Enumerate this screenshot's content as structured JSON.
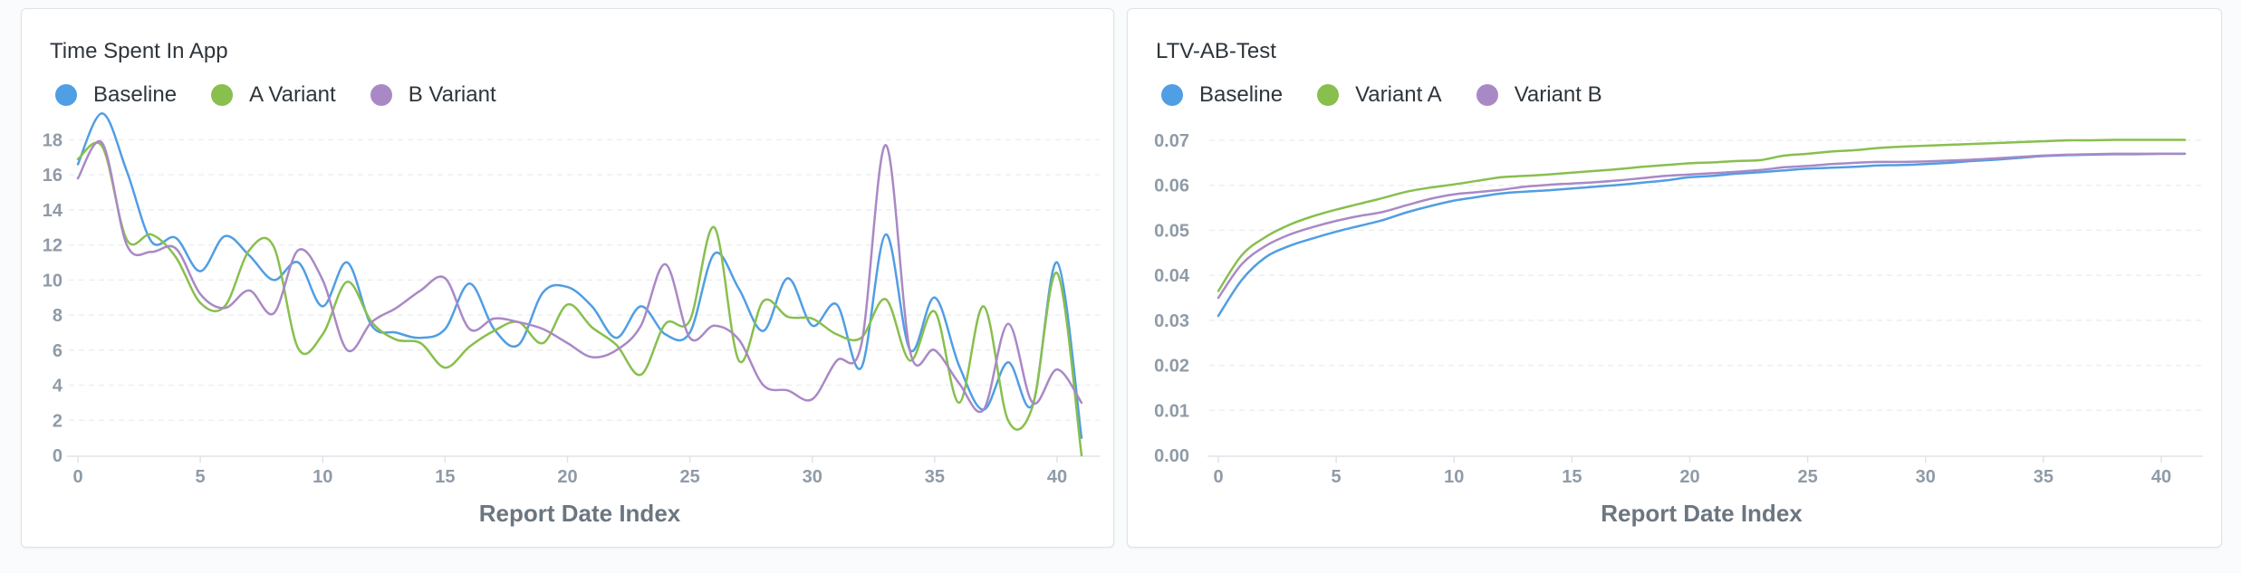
{
  "charts": [
    {
      "title": "Time Spent In App",
      "legend": [
        {
          "name": "Baseline",
          "color": "#509ee3"
        },
        {
          "name": "A Variant",
          "color": "#88bf4d"
        },
        {
          "name": "B Variant",
          "color": "#a989c5"
        }
      ]
    },
    {
      "title": "LTV-AB-Test",
      "legend": [
        {
          "name": "Baseline",
          "color": "#509ee3"
        },
        {
          "name": "Variant A",
          "color": "#88bf4d"
        },
        {
          "name": "Variant B",
          "color": "#a989c5"
        }
      ]
    }
  ],
  "chart_data": [
    {
      "type": "line",
      "title": "Time Spent In App",
      "xlabel": "Report Date Index",
      "ylabel": "",
      "xlim": [
        0,
        41
      ],
      "ylim": [
        0,
        19
      ],
      "xticks": [
        0,
        5,
        10,
        15,
        20,
        25,
        30,
        35,
        40
      ],
      "yticks": [
        0,
        2,
        4,
        6,
        8,
        10,
        12,
        14,
        16,
        18
      ],
      "ytick_labels": [
        "0",
        "2",
        "4",
        "6",
        "8",
        "10",
        "12",
        "14",
        "16",
        "18"
      ],
      "grid": "horizontal dashed",
      "legend_position": "top-left",
      "x": [
        0,
        1,
        2,
        3,
        4,
        5,
        6,
        7,
        8,
        9,
        10,
        11,
        12,
        13,
        14,
        15,
        16,
        17,
        18,
        19,
        20,
        21,
        22,
        23,
        24,
        25,
        26,
        27,
        28,
        29,
        30,
        31,
        32,
        33,
        34,
        35,
        36,
        37,
        38,
        39,
        40,
        41
      ],
      "series": [
        {
          "name": "Baseline",
          "color": "#509ee3",
          "values": [
            16.6,
            19.5,
            16.2,
            12.2,
            12.4,
            10.5,
            12.5,
            11.4,
            10.0,
            11.0,
            8.5,
            11.0,
            7.4,
            7.0,
            6.7,
            7.2,
            9.8,
            7.2,
            6.3,
            9.3,
            9.6,
            8.5,
            6.7,
            8.5,
            6.9,
            7.0,
            11.5,
            9.5,
            7.1,
            10.1,
            7.4,
            8.6,
            5.0,
            12.6,
            6.0,
            9.0,
            5.1,
            2.6,
            5.3,
            2.9,
            11.0,
            1.0
          ]
        },
        {
          "name": "A Variant",
          "color": "#88bf4d",
          "values": [
            16.9,
            17.6,
            12.3,
            12.6,
            11.3,
            8.7,
            8.5,
            11.7,
            11.9,
            6.1,
            6.9,
            9.9,
            7.6,
            6.6,
            6.4,
            5.0,
            6.2,
            7.1,
            7.6,
            6.4,
            8.6,
            7.3,
            6.3,
            4.6,
            7.5,
            7.7,
            13.0,
            5.4,
            8.8,
            7.9,
            7.8,
            6.9,
            6.7,
            8.9,
            5.4,
            8.2,
            3.0,
            8.5,
            2.0,
            2.8,
            10.4,
            0.0
          ]
        },
        {
          "name": "B Variant",
          "color": "#a989c5",
          "values": [
            15.8,
            17.8,
            12.0,
            11.6,
            11.8,
            9.2,
            8.4,
            9.4,
            8.1,
            11.7,
            10.0,
            6.0,
            7.6,
            8.4,
            9.4,
            10.1,
            7.2,
            7.8,
            7.6,
            7.2,
            6.4,
            5.6,
            6.0,
            7.4,
            10.9,
            6.7,
            7.4,
            6.6,
            4.0,
            3.7,
            3.2,
            5.4,
            6.3,
            17.7,
            5.9,
            6.0,
            4.1,
            2.6,
            7.5,
            3.0,
            4.9,
            3.0
          ]
        }
      ]
    },
    {
      "type": "line",
      "title": "LTV-AB-Test",
      "xlabel": "Report Date Index",
      "ylabel": "",
      "xlim": [
        0,
        41
      ],
      "ylim": [
        0,
        0.07
      ],
      "xticks": [
        0,
        5,
        10,
        15,
        20,
        25,
        30,
        35,
        40
      ],
      "yticks": [
        0,
        0.01,
        0.02,
        0.03,
        0.04,
        0.05,
        0.06,
        0.07
      ],
      "ytick_labels": [
        "0.00",
        "0.01",
        "0.02",
        "0.03",
        "0.04",
        "0.05",
        "0.06",
        "0.07"
      ],
      "grid": "horizontal dashed",
      "legend_position": "top-left",
      "x": [
        0,
        1,
        2,
        3,
        4,
        5,
        6,
        7,
        8,
        9,
        10,
        11,
        12,
        13,
        14,
        15,
        16,
        17,
        18,
        19,
        20,
        21,
        22,
        23,
        24,
        25,
        26,
        27,
        28,
        29,
        30,
        31,
        32,
        33,
        34,
        35,
        36,
        37,
        38,
        39,
        40,
        41
      ],
      "series": [
        {
          "name": "Baseline",
          "color": "#509ee3",
          "values": [
            0.031,
            0.039,
            0.044,
            0.0465,
            0.0482,
            0.0497,
            0.051,
            0.0523,
            0.054,
            0.0554,
            0.0566,
            0.0574,
            0.0582,
            0.0586,
            0.0589,
            0.0593,
            0.0597,
            0.0601,
            0.0606,
            0.0611,
            0.0618,
            0.0621,
            0.0626,
            0.0629,
            0.0633,
            0.0637,
            0.0639,
            0.0641,
            0.0644,
            0.0645,
            0.0647,
            0.065,
            0.0654,
            0.0657,
            0.0661,
            0.0665,
            0.0667,
            0.0668,
            0.0669,
            0.0669,
            0.067,
            0.067
          ]
        },
        {
          "name": "Variant A",
          "color": "#88bf4d",
          "values": [
            0.0365,
            0.0445,
            0.0485,
            0.0512,
            0.0531,
            0.0546,
            0.0559,
            0.0572,
            0.0586,
            0.0595,
            0.0602,
            0.061,
            0.0618,
            0.0621,
            0.0624,
            0.0628,
            0.0632,
            0.0636,
            0.0641,
            0.0645,
            0.0649,
            0.0651,
            0.0654,
            0.0656,
            0.0666,
            0.067,
            0.0675,
            0.0678,
            0.0683,
            0.0686,
            0.0688,
            0.069,
            0.0692,
            0.0694,
            0.0696,
            0.0698,
            0.07,
            0.07,
            0.0701,
            0.0701,
            0.0701,
            0.0701
          ]
        },
        {
          "name": "Variant B",
          "color": "#a989c5",
          "values": [
            0.035,
            0.0425,
            0.0465,
            0.049,
            0.0507,
            0.0521,
            0.0532,
            0.0541,
            0.0556,
            0.057,
            0.058,
            0.0585,
            0.059,
            0.0597,
            0.0601,
            0.0604,
            0.0607,
            0.0611,
            0.0616,
            0.0621,
            0.0624,
            0.0627,
            0.063,
            0.0634,
            0.064,
            0.0643,
            0.0647,
            0.065,
            0.0652,
            0.0652,
            0.0653,
            0.0655,
            0.0657,
            0.066,
            0.0663,
            0.0666,
            0.0668,
            0.0669,
            0.067,
            0.067,
            0.067,
            0.067
          ]
        }
      ]
    }
  ]
}
